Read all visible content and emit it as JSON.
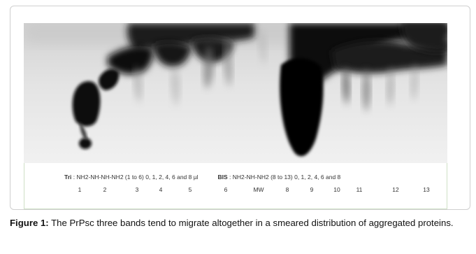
{
  "figure": {
    "legend": {
      "tri_prefix": "Tri",
      "tri_text": " : NH2-NH-NH-NH2 (1 to 6) 0, 1, 2, 4, 6 and 8 µl",
      "bis_prefix": "BIS",
      "bis_text": " : NH2-NH-NH2 (8 to 13) 0, 1, 2, 4, 6 and 8"
    },
    "lanes": [
      "1",
      "2",
      "3",
      "4",
      "5",
      "6",
      "MW",
      "8",
      "9",
      "10",
      "11",
      "12",
      "13"
    ],
    "caption": {
      "label": "Figure 1:",
      "text": " The PrPsc three bands tend to migrate altogether in a smeared distribution of aggregated proteins."
    }
  }
}
